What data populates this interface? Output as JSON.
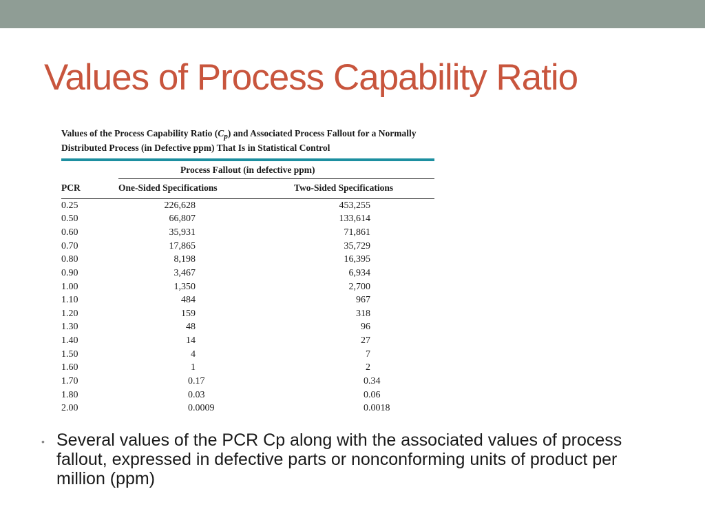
{
  "slide": {
    "title": "Values of Process Capability Ratio",
    "accent_color": "#c8553d",
    "top_bar_color": "#8f9d95"
  },
  "table": {
    "caption_parts": {
      "before": "Values of the Process Capability Ratio (",
      "symbol": "C",
      "subscript": "p",
      "after": ") and Associated Process Fallout for a Normally Distributed Process (in Defective ppm) That Is in Statistical Control"
    },
    "group_header": "Process Fallout (in defective ppm)",
    "columns": [
      "PCR",
      "One-Sided Specifications",
      "Two-Sided Specifications"
    ],
    "rule_color": "#1d8fa0",
    "rows": [
      [
        "0.25",
        "226,628",
        "453,255"
      ],
      [
        "0.50",
        "66,807",
        "133,614"
      ],
      [
        "0.60",
        "35,931",
        "71,861"
      ],
      [
        "0.70",
        "17,865",
        "35,729"
      ],
      [
        "0.80",
        "8,198",
        "16,395"
      ],
      [
        "0.90",
        "3,467",
        "6,934"
      ],
      [
        "1.00",
        "1,350",
        "2,700"
      ],
      [
        "1.10",
        "484",
        "967"
      ],
      [
        "1.20",
        "159",
        "318"
      ],
      [
        "1.30",
        "48",
        "96"
      ],
      [
        "1.40",
        "14",
        "27"
      ],
      [
        "1.50",
        "4",
        "7"
      ],
      [
        "1.60",
        "1",
        "2"
      ],
      [
        "1.70",
        "0.17",
        "0.34"
      ],
      [
        "1.80",
        "0.03",
        "0.06"
      ],
      [
        "2.00",
        "0.0009",
        "0.0018"
      ]
    ]
  },
  "bullet": {
    "icon": "bullet-dot",
    "text": "Several values of the PCR Cp along with the associated values of process fallout, expressed in defective parts or nonconforming units of product per million (ppm)"
  }
}
